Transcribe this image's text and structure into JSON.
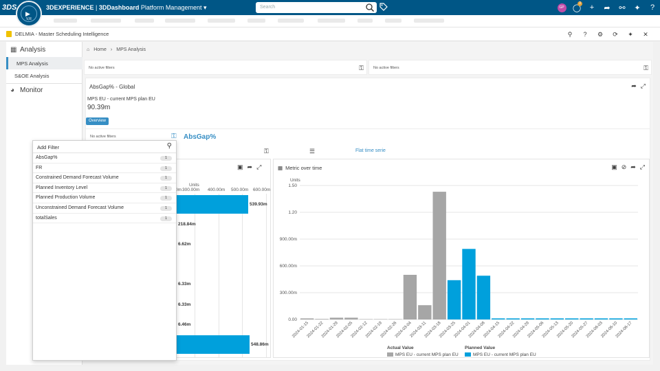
{
  "topbar": {
    "logo": "3DS",
    "compass_version": "V,R",
    "brand_3d": "3DEXPERIENCE",
    "brand_dash": "3DDashboard",
    "brand_title": "Platform Management",
    "search_placeholder": "Search",
    "avatar_initials": "GP",
    "notification_count": "3"
  },
  "app": {
    "title": "DELMIA - Master Scheduling Intelligence"
  },
  "sidebar": {
    "groups": [
      {
        "label": "Analysis",
        "icon": "bar-chart-icon"
      },
      {
        "label": "Monitor",
        "icon": "gauge-icon"
      }
    ],
    "items": [
      {
        "label": "MPS Analysis",
        "active": true
      },
      {
        "label": "S&OE Analysis",
        "active": false
      }
    ]
  },
  "breadcrumb": {
    "home": "Home",
    "current": "MPS Analysis"
  },
  "filters": {
    "left": "No active filters",
    "right": "No active filters",
    "section": "No active filters"
  },
  "kpi": {
    "title": "AbsGap% - Global",
    "subtitle": "MPS EU - current MPS plan EU",
    "value": "90.39m",
    "button": "Overview"
  },
  "section": {
    "title": "AbsGap%"
  },
  "controls": {
    "flat_label": "Flat time serie"
  },
  "add_filter": {
    "placeholder": "Add Filter",
    "items": [
      {
        "label": "AbsGap%",
        "count": "1"
      },
      {
        "label": "FR",
        "count": "1"
      },
      {
        "label": "Constrained Demand Forecast Volume",
        "count": "1"
      },
      {
        "label": "Planned Inventory Level",
        "count": "1"
      },
      {
        "label": "Planned Production Volume",
        "count": "1"
      },
      {
        "label": "Unconstrained Demand Forecast Volume",
        "count": "1"
      },
      {
        "label": "totalSales",
        "count": "1"
      }
    ]
  },
  "left_chart": {
    "units": "Units",
    "ticks": [
      "0m",
      "300.00m",
      "400.00m",
      "500.00m",
      "600.00m"
    ],
    "bar_labels": [
      "539.93m",
      "218.84m",
      "6.62m",
      "6.33m",
      "6.33m",
      "6.46m",
      "548.86m"
    ]
  },
  "right_chart": {
    "title": "Metric over time"
  },
  "chart_data": {
    "type": "bar",
    "title": "Metric over time",
    "ylabel": "Units",
    "ylim": [
      0,
      1.5
    ],
    "yticks": [
      "0.00",
      "300.00m",
      "600.00m",
      "900.00m",
      "1.20",
      "1.50"
    ],
    "categories": [
      "2024-01-15",
      "2024-01-22",
      "2024-01-29",
      "2024-02-05",
      "2024-02-12",
      "2024-02-19",
      "2024-02-26",
      "2024-03-04",
      "2024-03-11",
      "2024-03-18",
      "2024-03-25",
      "2024-04-01",
      "2024-04-08",
      "2024-04-15",
      "2024-04-22",
      "2024-04-29",
      "2024-05-06",
      "2024-05-13",
      "2024-05-20",
      "2024-05-27",
      "2024-06-03",
      "2024-06-10",
      "2024-06-17"
    ],
    "series": [
      {
        "name": "MPS EU - current MPS plan EU",
        "legend_group": "Actual Value",
        "color": "#a6a6a6",
        "values": [
          0.012,
          0.006,
          0.02,
          0.02,
          0.004,
          0.004,
          0.004,
          0.5,
          0.16,
          1.43,
          null,
          null,
          null,
          null,
          null,
          null,
          null,
          null,
          null,
          null,
          null,
          null,
          null
        ]
      },
      {
        "name": "MPS EU - current MPS plan EU",
        "legend_group": "Planned Value",
        "color": "#00a0dc",
        "values": [
          null,
          null,
          null,
          null,
          null,
          null,
          null,
          null,
          null,
          null,
          0.44,
          0.79,
          0.49,
          0.012,
          0.012,
          0.012,
          0.012,
          0.012,
          0.012,
          0.012,
          0.012,
          0.012,
          0.012
        ]
      }
    ],
    "legend_headers": [
      "Actual Value",
      "Planned Value"
    ],
    "grid": true
  }
}
